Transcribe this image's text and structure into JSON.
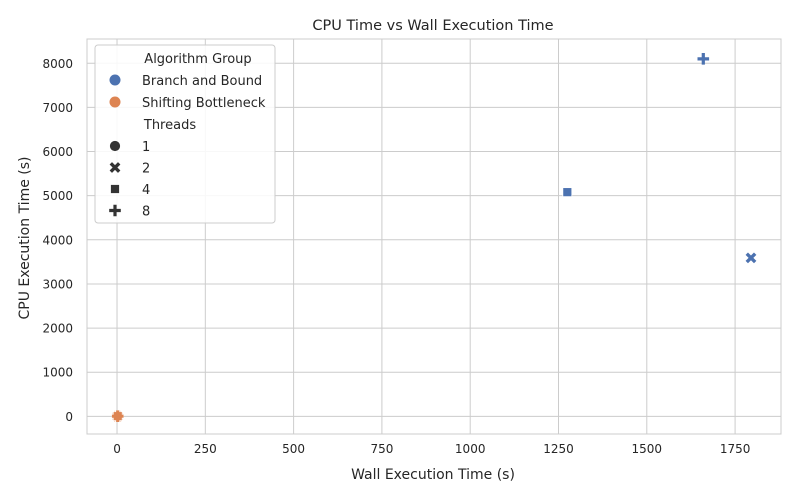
{
  "chart_data": {
    "type": "scatter",
    "title": "CPU Time vs Wall Execution Time",
    "xlabel": "Wall Execution Time (s)",
    "ylabel": "CPU Execution Time (s)",
    "xlim": [
      -85,
      1880
    ],
    "ylim": [
      -400,
      8550
    ],
    "xticks": [
      0,
      250,
      500,
      750,
      1000,
      1250,
      1500,
      1750
    ],
    "yticks": [
      0,
      1000,
      2000,
      3000,
      4000,
      5000,
      6000,
      7000,
      8000
    ],
    "grid": true,
    "legend_position": "top-left",
    "legend": {
      "hue_title": "Algorithm Group",
      "hue_entries": [
        {
          "label": "Branch and Bound",
          "color": "#4c72b0"
        },
        {
          "label": "Shifting Bottleneck",
          "color": "#dd8452"
        }
      ],
      "style_title": "Threads",
      "style_entries": [
        {
          "label": "1",
          "marker": "circle"
        },
        {
          "label": "2",
          "marker": "x"
        },
        {
          "label": "4",
          "marker": "square"
        },
        {
          "label": "8",
          "marker": "plus"
        }
      ]
    },
    "series": [
      {
        "group": "Branch and Bound",
        "threads": "2",
        "marker": "x",
        "color": "#4c72b0",
        "x": 1795,
        "y": 3590
      },
      {
        "group": "Branch and Bound",
        "threads": "4",
        "marker": "square",
        "color": "#4c72b0",
        "x": 1275,
        "y": 5080
      },
      {
        "group": "Branch and Bound",
        "threads": "8",
        "marker": "plus",
        "color": "#4c72b0",
        "x": 1660,
        "y": 8100
      },
      {
        "group": "Shifting Bottleneck",
        "threads": "1",
        "marker": "circle",
        "color": "#dd8452",
        "x": 2,
        "y": 4
      },
      {
        "group": "Shifting Bottleneck",
        "threads": "2",
        "marker": "x",
        "color": "#dd8452",
        "x": 2,
        "y": 4
      },
      {
        "group": "Shifting Bottleneck",
        "threads": "4",
        "marker": "square",
        "color": "#dd8452",
        "x": 2,
        "y": 4
      },
      {
        "group": "Shifting Bottleneck",
        "threads": "8",
        "marker": "plus",
        "color": "#dd8452",
        "x": 2,
        "y": 4
      }
    ]
  }
}
